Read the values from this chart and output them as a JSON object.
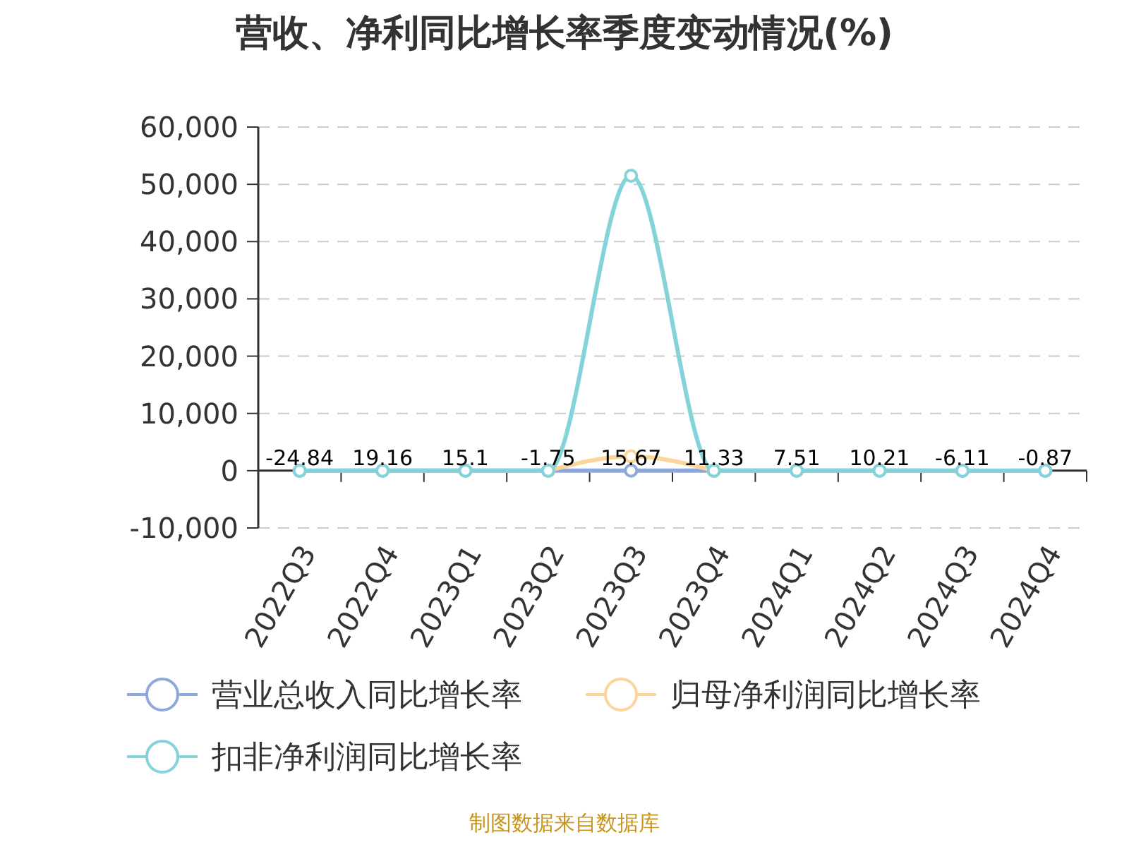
{
  "chart_data": {
    "type": "line",
    "title": "营收、净利同比增长率季度变动情况(%)",
    "categories": [
      "2022Q3",
      "2022Q4",
      "2023Q1",
      "2023Q2",
      "2023Q3",
      "2023Q4",
      "2024Q1",
      "2024Q2",
      "2024Q3",
      "2024Q4"
    ],
    "series": [
      {
        "name": "营业总收入同比增长率",
        "color": "#8fa8dc",
        "values": [
          -24.84,
          19.16,
          15.1,
          -1.75,
          15.67,
          11.33,
          7.51,
          10.21,
          -6.11,
          -0.87
        ],
        "value_labels": [
          "-24.84",
          "19.16",
          "15.1",
          "-1.75",
          "15.67",
          "11.33",
          "7.51",
          "10.21",
          "-6.11",
          "-0.87"
        ]
      },
      {
        "name": "归母净利润同比增长率",
        "color": "#fcd59b",
        "values": [
          null,
          null,
          null,
          0,
          2500,
          0,
          null,
          null,
          null,
          null
        ]
      },
      {
        "name": "扣非净利润同比增长率",
        "color": "#84d3d9",
        "values": [
          0,
          0,
          0,
          0,
          51500,
          0,
          0,
          0,
          0,
          0
        ]
      }
    ],
    "ylim": [
      -10000,
      60000
    ],
    "yticks": [
      {
        "value": -10000,
        "label": "-10,000"
      },
      0,
      {
        "value": 10000,
        "label": "10,000"
      },
      {
        "value": 20000,
        "label": "20,000"
      },
      {
        "value": 30000,
        "label": "30,000"
      },
      {
        "value": 40000,
        "label": "40,000"
      },
      {
        "value": 50000,
        "label": "50,000"
      },
      {
        "value": 60000,
        "label": "60,000"
      }
    ],
    "grid": "y",
    "legend": "bottom",
    "marker": "circle",
    "line_style": "solid",
    "annotations": [
      "制图数据来自数据库"
    ]
  }
}
